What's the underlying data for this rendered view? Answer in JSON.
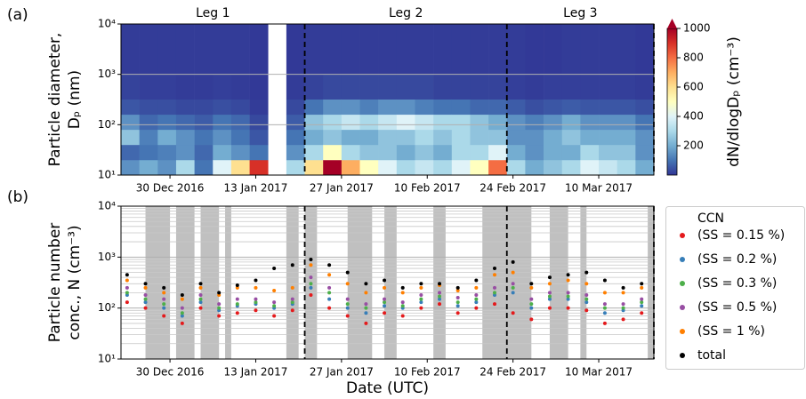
{
  "chart_data": [
    {
      "type": "heatmap",
      "panel_label": "(a)",
      "ylabel": [
        "Particle diameter,",
        "Dₚ (nm)"
      ],
      "log_y": true,
      "ylim": [
        10,
        10000
      ],
      "yticks": [
        {
          "value": 10,
          "label": "10¹"
        },
        {
          "value": 100,
          "label": "10²"
        },
        {
          "value": 1000,
          "label": "10³"
        },
        {
          "value": 10000,
          "label": "10⁴"
        }
      ],
      "grid": true,
      "xlim": [
        "2016-12-22",
        "2017-03-19"
      ],
      "xticks": [
        {
          "value": "2016-12-30",
          "label": "30 Dec 2016"
        },
        {
          "value": "2017-01-13",
          "label": "13 Jan 2017"
        },
        {
          "value": "2017-01-27",
          "label": "27 Jan 2017"
        },
        {
          "value": "2017-02-10",
          "label": "10 Feb 2017"
        },
        {
          "value": "2017-02-24",
          "label": "24 Feb 2017"
        },
        {
          "value": "2017-03-10",
          "label": "10 Mar 2017"
        }
      ],
      "legs": {
        "labels": [
          "Leg 1",
          "Leg 2",
          "Leg 3"
        ],
        "boundaries": [
          "2017-01-21",
          "2017-02-23",
          "2017-03-19"
        ]
      },
      "x_edges": [
        "2016-12-22",
        "2016-12-25",
        "2016-12-28",
        "2016-12-31",
        "2017-01-03",
        "2017-01-06",
        "2017-01-09",
        "2017-01-12",
        "2017-01-15",
        "2017-01-18",
        "2017-01-21",
        "2017-01-24",
        "2017-01-27",
        "2017-01-30",
        "2017-02-02",
        "2017-02-05",
        "2017-02-08",
        "2017-02-11",
        "2017-02-14",
        "2017-02-17",
        "2017-02-20",
        "2017-02-23",
        "2017-02-26",
        "2017-03-01",
        "2017-03-04",
        "2017-03-07",
        "2017-03-10",
        "2017-03-13",
        "2017-03-16",
        "2017-03-19"
      ],
      "y_edges": [
        10,
        20,
        40,
        80,
        160,
        320,
        1000,
        10000
      ],
      "z": [
        [
          150,
          80,
          250,
          150,
          50,
          20,
          10
        ],
        [
          200,
          100,
          120,
          80,
          40,
          15,
          10
        ],
        [
          150,
          120,
          200,
          100,
          40,
          15,
          10
        ],
        [
          300,
          150,
          150,
          80,
          30,
          10,
          10
        ],
        [
          100,
          80,
          100,
          60,
          30,
          10,
          10
        ],
        [
          400,
          200,
          150,
          100,
          40,
          15,
          10
        ],
        [
          600,
          150,
          100,
          80,
          30,
          10,
          10
        ],
        [
          900,
          100,
          50,
          30,
          10,
          5,
          5
        ],
        [
          null,
          null,
          null,
          null,
          null,
          null,
          null
        ],
        [
          300,
          150,
          100,
          60,
          30,
          10,
          5
        ],
        [
          600,
          300,
          200,
          250,
          100,
          20,
          10
        ],
        [
          1000,
          500,
          250,
          300,
          150,
          30,
          10
        ],
        [
          700,
          300,
          200,
          350,
          150,
          30,
          10
        ],
        [
          500,
          250,
          200,
          300,
          120,
          30,
          10
        ],
        [
          400,
          250,
          250,
          350,
          150,
          30,
          10
        ],
        [
          300,
          200,
          250,
          400,
          150,
          30,
          10
        ],
        [
          350,
          250,
          300,
          350,
          120,
          30,
          10
        ],
        [
          300,
          200,
          250,
          300,
          100,
          20,
          10
        ],
        [
          400,
          300,
          300,
          300,
          100,
          20,
          10
        ],
        [
          500,
          300,
          250,
          250,
          80,
          20,
          10
        ],
        [
          800,
          400,
          250,
          200,
          80,
          20,
          10
        ],
        [
          300,
          200,
          150,
          150,
          60,
          15,
          10
        ],
        [
          200,
          150,
          150,
          120,
          40,
          10,
          5
        ],
        [
          250,
          200,
          200,
          150,
          50,
          15,
          5
        ],
        [
          300,
          200,
          250,
          200,
          60,
          15,
          10
        ],
        [
          400,
          300,
          200,
          150,
          50,
          15,
          10
        ],
        [
          350,
          250,
          200,
          150,
          50,
          15,
          10
        ],
        [
          300,
          250,
          200,
          150,
          50,
          15,
          10
        ],
        [
          200,
          150,
          150,
          100,
          40,
          10,
          5
        ]
      ],
      "colorbar": {
        "label": "dN/dlogDₚ (cm⁻³)",
        "lim": [
          0,
          1000
        ],
        "ticks": [
          200,
          400,
          600,
          800,
          1000
        ],
        "extend": "max",
        "colors": [
          "#313695",
          "#4575b4",
          "#74add1",
          "#abd9e9",
          "#e0f3f8",
          "#ffffbf",
          "#fee090",
          "#fdae61",
          "#f46d43",
          "#d73027",
          "#a50026"
        ]
      }
    },
    {
      "type": "scatter",
      "panel_label": "(b)",
      "ylabel": [
        "Particle number",
        "conc., N (cm⁻³)"
      ],
      "xlabel": "Date (UTC)",
      "log_y": true,
      "ylim": [
        10,
        10000
      ],
      "yticks": [
        {
          "value": 10,
          "label": "10¹"
        },
        {
          "value": 100,
          "label": "10²"
        },
        {
          "value": 1000,
          "label": "10³"
        },
        {
          "value": 10000,
          "label": "10⁴"
        }
      ],
      "grid": true,
      "minor_grid": true,
      "xlim": [
        "2016-12-22",
        "2017-03-19"
      ],
      "xticks": [
        {
          "value": "2016-12-30",
          "label": "30 Dec 2016"
        },
        {
          "value": "2017-01-13",
          "label": "13 Jan 2017"
        },
        {
          "value": "2017-01-27",
          "label": "27 Jan 2017"
        },
        {
          "value": "2017-02-10",
          "label": "10 Feb 2017"
        },
        {
          "value": "2017-02-24",
          "label": "24 Feb 2017"
        },
        {
          "value": "2017-03-10",
          "label": "10 Mar 2017"
        }
      ],
      "leg_boundaries": [
        "2017-01-21",
        "2017-02-23",
        "2017-03-19"
      ],
      "shaded_spans": [
        [
          "2016-12-26",
          "2016-12-30"
        ],
        [
          "2016-12-31",
          "2017-01-03"
        ],
        [
          "2017-01-04",
          "2017-01-07"
        ],
        [
          "2017-01-08",
          "2017-01-09"
        ],
        [
          "2017-01-18",
          "2017-01-20"
        ],
        [
          "2017-01-21",
          "2017-01-23"
        ],
        [
          "2017-01-28",
          "2017-02-01"
        ],
        [
          "2017-02-03",
          "2017-02-05"
        ],
        [
          "2017-02-11",
          "2017-02-13"
        ],
        [
          "2017-02-19",
          "2017-02-27"
        ],
        [
          "2017-03-02",
          "2017-03-05"
        ],
        [
          "2017-03-07",
          "2017-03-08"
        ],
        [
          "2017-03-18",
          "2017-03-19"
        ]
      ],
      "shade_color": "#c0c0c0",
      "legend_title": "CCN",
      "x": [
        "2016-12-23",
        "2016-12-26",
        "2016-12-29",
        "2017-01-01",
        "2017-01-04",
        "2017-01-07",
        "2017-01-10",
        "2017-01-13",
        "2017-01-16",
        "2017-01-19",
        "2017-01-22",
        "2017-01-25",
        "2017-01-28",
        "2017-01-31",
        "2017-02-03",
        "2017-02-06",
        "2017-02-09",
        "2017-02-12",
        "2017-02-15",
        "2017-02-18",
        "2017-02-21",
        "2017-02-24",
        "2017-02-27",
        "2017-03-02",
        "2017-03-05",
        "2017-03-08",
        "2017-03-11",
        "2017-03-14",
        "2017-03-17"
      ],
      "series": [
        {
          "name": "(SS = 0.15 %)",
          "color": "#e41a1c",
          "values": [
            130,
            100,
            70,
            50,
            100,
            70,
            80,
            90,
            70,
            90,
            180,
            100,
            70,
            50,
            80,
            70,
            100,
            120,
            80,
            100,
            120,
            80,
            60,
            100,
            100,
            90,
            50,
            60,
            80
          ]
        },
        {
          "name": "(SS = 0.2 %)",
          "color": "#377eb8",
          "values": [
            180,
            130,
            100,
            70,
            130,
            90,
            110,
            120,
            100,
            120,
            250,
            150,
            100,
            80,
            110,
            100,
            130,
            150,
            110,
            130,
            180,
            200,
            100,
            150,
            150,
            130,
            80,
            90,
            110
          ]
        },
        {
          "name": "(SS = 0.3 %)",
          "color": "#4daf4a",
          "values": [
            200,
            150,
            120,
            80,
            150,
            100,
            120,
            130,
            110,
            130,
            300,
            200,
            120,
            100,
            130,
            110,
            150,
            170,
            130,
            150,
            200,
            250,
            120,
            170,
            170,
            150,
            100,
            100,
            130
          ]
        },
        {
          "name": "(SS = 0.5 %)",
          "color": "#984ea3",
          "values": [
            250,
            180,
            150,
            100,
            180,
            120,
            150,
            150,
            130,
            150,
            400,
            250,
            150,
            120,
            150,
            130,
            180,
            200,
            160,
            180,
            250,
            300,
            150,
            200,
            200,
            180,
            120,
            120,
            150
          ]
        },
        {
          "name": "(SS = 1 %)",
          "color": "#ff7f00",
          "values": [
            350,
            250,
            200,
            150,
            250,
            180,
            250,
            250,
            220,
            250,
            700,
            450,
            300,
            200,
            250,
            200,
            250,
            280,
            220,
            250,
            450,
            500,
            250,
            300,
            350,
            300,
            200,
            200,
            250
          ]
        },
        {
          "name": "total",
          "color": "#000000",
          "values": [
            450,
            300,
            250,
            180,
            300,
            200,
            280,
            350,
            600,
            700,
            900,
            700,
            500,
            300,
            350,
            250,
            300,
            300,
            250,
            350,
            600,
            800,
            300,
            400,
            450,
            500,
            350,
            250,
            300
          ]
        }
      ]
    }
  ]
}
